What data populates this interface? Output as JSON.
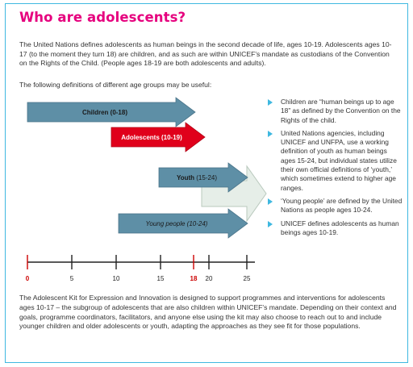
{
  "title": "Who are adolescents?",
  "intro": "The United Nations defines adolescents as human beings in the second decade of life, ages 10-19. Adolescents ages 10-17 (to the moment they turn 18) are children, and as such are within UNICEF's mandate as custodians of the Convention on the Rights of the Child.  (People ages 18-19 are both adolescents and adults).",
  "definitions_lead": "The following definitions of different age groups may be useful:",
  "arrows": [
    {
      "label": "Children (0-18)",
      "start": 0,
      "end": 18,
      "color": "#5e8fa6",
      "text_color": "#1a1a1a",
      "style": "bold"
    },
    {
      "label": "Adolescents (10-19)",
      "start": 10,
      "end": 19,
      "color": "#e0001b",
      "text_color": "#ffffff",
      "style": "bold"
    },
    {
      "label_bold": "Youth",
      "label_rest": " (15-24)",
      "start": 15,
      "end": 24,
      "color": "#5e8fa6",
      "text_color": "#1a1a1a",
      "style": "mixed"
    },
    {
      "label": "Young people (10-24)",
      "start": 10,
      "end": 24,
      "color": "#5e8fa6",
      "text_color": "#1a1a1a",
      "style": "italic"
    }
  ],
  "axis": {
    "ticks": [
      {
        "value": 0,
        "label": "0",
        "color": "#cc0000"
      },
      {
        "value": 5,
        "label": "5",
        "color": "#222222"
      },
      {
        "value": 10,
        "label": "10",
        "color": "#222222"
      },
      {
        "value": 15,
        "label": "15",
        "color": "#222222"
      },
      {
        "value": 18,
        "label": "18",
        "color": "#cc0000"
      },
      {
        "value": 20,
        "label": "20",
        "color": "#222222"
      },
      {
        "value": 25,
        "label": "25",
        "color": "#222222"
      }
    ],
    "min": 0,
    "max": 25
  },
  "bullets": [
    "Children are “human beings up to age 18” as defined by the Convention on the Rights of the child.",
    "United Nations agencies, including UNICEF and UNFPA, use a working definition of youth as human beings ages 15-24, but individual states utilize their own official definitions of ‘youth,’ which sometimes extend to higher age ranges.",
    "‘Young people’ are defined by the United Nations as people ages 10-24.",
    "UNICEF defines adolescents as human beings ages 10-19."
  ],
  "footer": "The Adolescent Kit for Expression and Innovation is designed to support programmes and interventions for adolescents ages 10-17 – the subgroup of adolescents that are also children within UNICEF's mandate. Depending on their context and goals, programme coordinators, facilitators, and anyone else using the kit may also choose to reach out to and include younger children and older adolescents or youth, adapting the approaches as they see fit for those populations.",
  "colors": {
    "accent_pink": "#e6007e",
    "frame_blue": "#3fb8e0",
    "arrow_blue": "#5e8fa6",
    "arrow_red": "#e0001b"
  }
}
